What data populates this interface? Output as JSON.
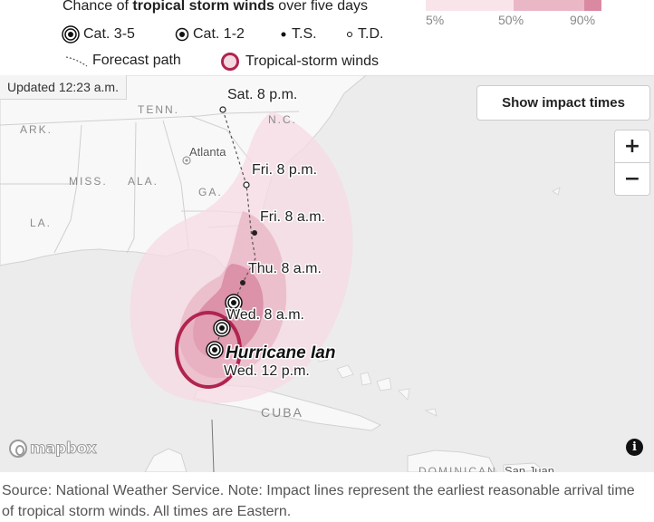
{
  "legend": {
    "chance_prefix": "Chance of ",
    "chance_bold": "tropical storm winds",
    "chance_suffix": " over five days",
    "scale_labels": [
      "5%",
      "50%",
      "90%"
    ],
    "scale_colors": [
      "#f9e4ea",
      "#eab7c6",
      "#d98aa2"
    ],
    "categories": [
      {
        "label": "Cat. 3-5",
        "icon": "cat-3-5-icon"
      },
      {
        "label": "Cat. 1-2",
        "icon": "cat-1-2-icon"
      },
      {
        "label": "T.S.",
        "icon": "tropical-storm-icon"
      },
      {
        "label": "T.D.",
        "icon": "tropical-depression-icon"
      }
    ],
    "forecast_path_label": "Forecast path",
    "tropical_storm_winds_label": "Tropical-storm winds",
    "winds_color": "#b0244f"
  },
  "map": {
    "updated": "Updated 12:23 a.m.",
    "show_impact_times": "Show impact times",
    "zoom_in": "+",
    "zoom_out": "−",
    "attribution": "mapbox",
    "info": "i",
    "place_labels": {
      "tenn": "TENN.",
      "nc": "N.C.",
      "ark": "ARK.",
      "miss": "MISS.",
      "ala": "ALA.",
      "ga": "GA.",
      "la": "LA.",
      "cuba": "CUBA",
      "dominican": "DOMINICAN",
      "san_juan": "San Juan",
      "atlanta": "Atlanta"
    },
    "forecast_times": {
      "sat_8pm": "Sat. 8 p.m.",
      "fri_8pm": "Fri. 8 p.m.",
      "fri_8am": "Fri. 8 a.m.",
      "thu_8am": "Thu. 8 a.m.",
      "wed_8am": "Wed. 8 a.m.",
      "wed_12pm": "Wed. 12 p.m."
    },
    "storm_name": "Hurricane Ian"
  },
  "footer": {
    "source": "Source: National Weather Service. Note: Impact lines represent the earliest reasonable arrival time of tropical storm winds. All times are Eastern."
  }
}
